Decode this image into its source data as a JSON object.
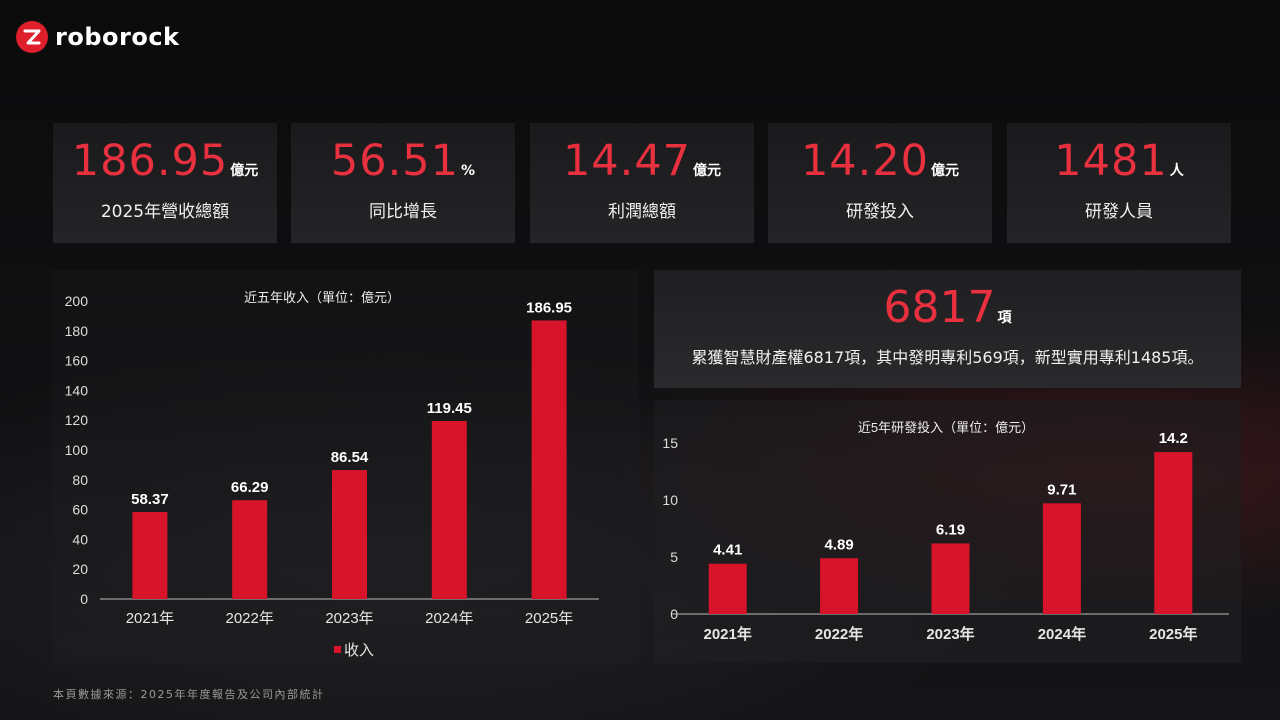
{
  "brand": {
    "name": "roborock"
  },
  "stats": [
    {
      "value": "186.95",
      "unit": "億元",
      "label": "2025年營收總額"
    },
    {
      "value": "56.51",
      "unit": "%",
      "label": "同比增長"
    },
    {
      "value": "14.47",
      "unit": "億元",
      "label": "利潤總額"
    },
    {
      "value": "14.20",
      "unit": "億元",
      "label": "研發投入"
    },
    {
      "value": "1481",
      "unit": "人",
      "label": "研發人員"
    }
  ],
  "ip": {
    "value": "6817",
    "unit": "項",
    "description": "累獲智慧財產權6817項，其中發明專利569項，新型實用專利1485項。"
  },
  "colors": {
    "accent": "#e8303f",
    "bar": "#d7142a",
    "background": "#0a0a0b"
  },
  "chart_data": [
    {
      "type": "bar",
      "title": "近五年收入（單位：億元）",
      "categories": [
        "2021年",
        "2022年",
        "2023年",
        "2024年",
        "2025年"
      ],
      "series": [
        {
          "name": "收入",
          "values": [
            58.37,
            66.29,
            86.54,
            119.45,
            186.95
          ]
        }
      ],
      "data_labels": [
        "58.37",
        "66.29",
        "86.54",
        "119.45",
        "186.95"
      ],
      "ylim": [
        0,
        200
      ],
      "yticks": [
        0,
        20,
        40,
        60,
        80,
        100,
        120,
        140,
        160,
        180,
        200
      ],
      "legend": "bottom",
      "grid": false
    },
    {
      "type": "bar",
      "title": "近5年研發投入（單位：億元）",
      "categories": [
        "2021年",
        "2022年",
        "2023年",
        "2024年",
        "2025年"
      ],
      "series": [
        {
          "values": [
            4.41,
            4.89,
            6.19,
            9.71,
            14.2
          ]
        }
      ],
      "data_labels": [
        "4.41",
        "4.89",
        "6.19",
        "9.71",
        "14.2"
      ],
      "ylim": [
        0,
        15
      ],
      "yticks": [
        0,
        5,
        10,
        15
      ],
      "legend": "none",
      "grid": false
    }
  ],
  "footer": "本頁數據來源：2025年年度報告及公司內部統計"
}
